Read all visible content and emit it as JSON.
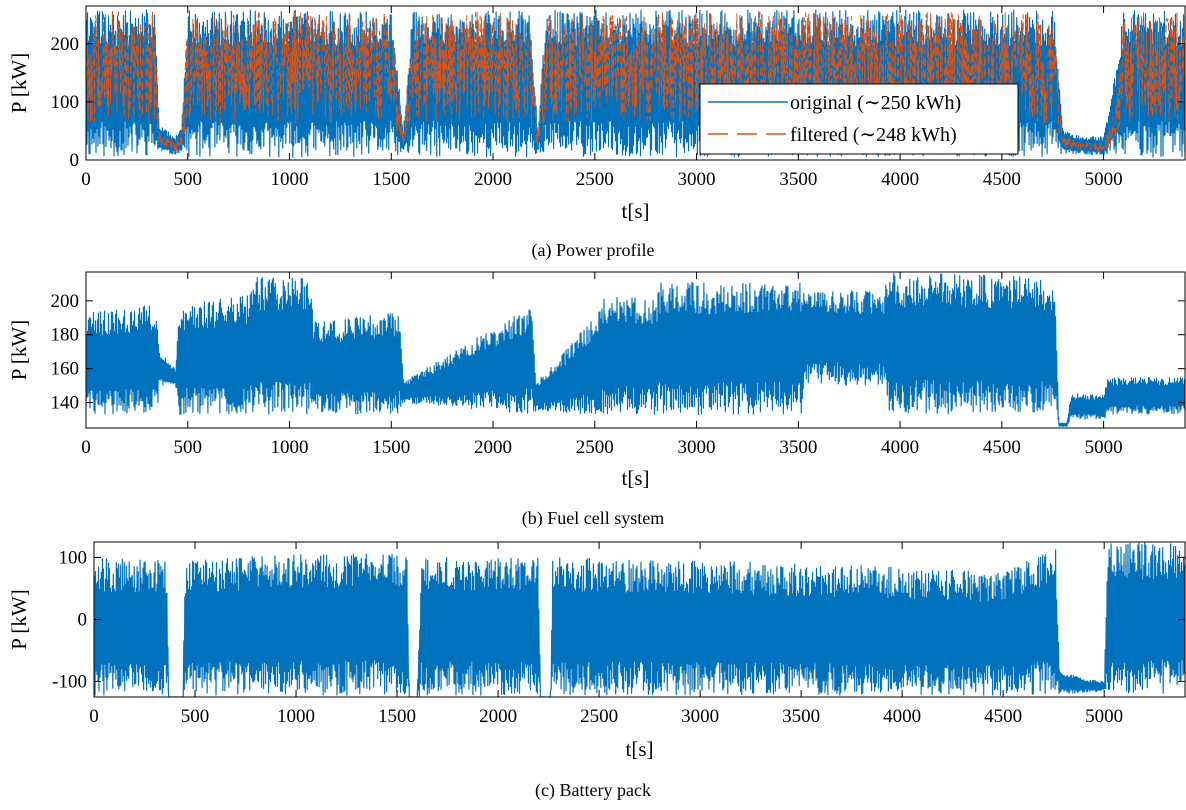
{
  "figure": {
    "colors": {
      "original": "#0072BD",
      "filtered": "#D95319",
      "axes": "#000000"
    }
  },
  "chart_data": [
    {
      "id": "a",
      "type": "line",
      "caption": "(a) Power profile",
      "xlabel": "t[s]",
      "ylabel": "P [kW]",
      "xlim": [
        0,
        5400
      ],
      "ylim": [
        0,
        265
      ],
      "xticks": [
        0,
        500,
        1000,
        1500,
        2000,
        2500,
        3000,
        3500,
        4000,
        4500,
        5000
      ],
      "yticks": [
        0,
        100,
        200
      ],
      "grid": false,
      "legend_position": "bottom-right",
      "series": [
        {
          "name": "original (∼250 kWh)",
          "style": "solid",
          "color": "#0072BD",
          "band": "dense oscillation between ~5 and ~260 kW",
          "x": [
            0,
            340,
            360,
            400,
            440,
            470,
            500,
            1000,
            1500,
            1560,
            1600,
            2000,
            2180,
            2220,
            2260,
            3000,
            3500,
            4000,
            4500,
            4760,
            4800,
            4900,
            5000,
            5050,
            5100,
            5200,
            5300,
            5400
          ],
          "y": [
            150,
            150,
            40,
            25,
            20,
            30,
            150,
            150,
            150,
            25,
            150,
            150,
            150,
            25,
            150,
            150,
            150,
            150,
            150,
            150,
            30,
            20,
            18,
            40,
            80,
            150,
            150,
            150
          ],
          "low": [
            5,
            5,
            15,
            10,
            10,
            15,
            5,
            5,
            5,
            12,
            5,
            5,
            5,
            12,
            5,
            5,
            5,
            5,
            5,
            5,
            12,
            10,
            8,
            10,
            5,
            5,
            5,
            5
          ],
          "high": [
            258,
            258,
            60,
            50,
            40,
            55,
            258,
            258,
            258,
            50,
            258,
            258,
            258,
            50,
            258,
            258,
            258,
            258,
            258,
            258,
            50,
            40,
            40,
            140,
            258,
            258,
            258,
            258
          ]
        },
        {
          "name": "filtered (∼248 kWh)",
          "style": "dashed",
          "color": "#D95319",
          "band": "smoothed profile oscillating between ~20 and ~250 kW",
          "x": [
            0,
            340,
            360,
            400,
            440,
            470,
            500,
            1000,
            1500,
            1560,
            1600,
            2000,
            2180,
            2220,
            2260,
            3000,
            3500,
            4000,
            4500,
            4760,
            4800,
            4900,
            5000,
            5050,
            5100,
            5200,
            5300,
            5400
          ],
          "y": [
            170,
            170,
            35,
            25,
            20,
            28,
            170,
            170,
            170,
            22,
            170,
            170,
            170,
            22,
            170,
            170,
            170,
            170,
            170,
            170,
            28,
            20,
            18,
            35,
            80,
            170,
            170,
            170
          ],
          "low": [
            30,
            30,
            20,
            15,
            12,
            18,
            30,
            30,
            30,
            15,
            30,
            30,
            30,
            15,
            30,
            30,
            30,
            30,
            30,
            30,
            18,
            14,
            12,
            20,
            30,
            30,
            30,
            30
          ],
          "high": [
            255,
            255,
            50,
            40,
            35,
            45,
            255,
            255,
            255,
            40,
            255,
            255,
            255,
            40,
            255,
            255,
            255,
            255,
            255,
            255,
            40,
            32,
            32,
            80,
            250,
            255,
            255,
            255
          ]
        }
      ]
    },
    {
      "id": "b",
      "type": "line",
      "caption": "(b) Fuel cell system",
      "xlabel": "t[s]",
      "ylabel": "P [kW]",
      "xlim": [
        0,
        5400
      ],
      "ylim": [
        125,
        217
      ],
      "xticks": [
        0,
        500,
        1000,
        1500,
        2000,
        2500,
        3000,
        3500,
        4000,
        4500,
        5000
      ],
      "yticks": [
        140,
        160,
        180,
        200
      ],
      "grid": false,
      "series": [
        {
          "color": "#0072BD",
          "style": "solid",
          "x": [
            0,
            350,
            360,
            440,
            460,
            800,
            820,
            1100,
            1120,
            1540,
            1560,
            2190,
            2210,
            2520,
            2540,
            2800,
            2820,
            3520,
            3540,
            3920,
            3940,
            4760,
            4780,
            4820,
            4840,
            5000,
            5020,
            5400
          ],
          "high": [
            193,
            198,
            170,
            160,
            198,
            203,
            214,
            214,
            188,
            193,
            152,
            198,
            152,
            193,
            202,
            202,
            211,
            211,
            206,
            206,
            217,
            214,
            128,
            128,
            145,
            145,
            155,
            155
          ],
          "low": [
            133,
            133,
            150,
            150,
            133,
            133,
            133,
            133,
            133,
            133,
            140,
            133,
            135,
            133,
            133,
            133,
            133,
            133,
            150,
            150,
            133,
            133,
            126,
            126,
            130,
            130,
            133,
            133
          ]
        }
      ]
    },
    {
      "id": "c",
      "type": "line",
      "caption": "(c) Battery pack",
      "xlabel": "t[s]",
      "ylabel": "P [kW]",
      "xlim": [
        0,
        5400
      ],
      "ylim": [
        -125,
        125
      ],
      "xticks": [
        0,
        500,
        1000,
        1500,
        2000,
        2500,
        3000,
        3500,
        4000,
        4500,
        5000
      ],
      "yticks": [
        -100,
        0,
        100
      ],
      "grid": false,
      "series": [
        {
          "color": "#0072BD",
          "style": "solid",
          "x": [
            0,
            360,
            370,
            440,
            450,
            1000,
            1500,
            1550,
            1560,
            1600,
            1620,
            2200,
            2210,
            2260,
            2270,
            3000,
            3500,
            4000,
            4500,
            4760,
            4780,
            4900,
            5000,
            5020,
            5100,
            5200,
            5400
          ],
          "high": [
            100,
            95,
            -125,
            -125,
            95,
            105,
            108,
            105,
            -125,
            -125,
            100,
            100,
            -125,
            -125,
            100,
            95,
            90,
            85,
            75,
            120,
            -85,
            -95,
            -100,
            125,
            125,
            125,
            125
          ],
          "low": [
            -122,
            -122,
            -125,
            -125,
            -122,
            -122,
            -122,
            -122,
            -125,
            -125,
            -122,
            -122,
            -125,
            -125,
            -122,
            -122,
            -122,
            -122,
            -122,
            -122,
            -120,
            -118,
            -115,
            -122,
            -122,
            -122,
            -122
          ]
        }
      ]
    }
  ]
}
